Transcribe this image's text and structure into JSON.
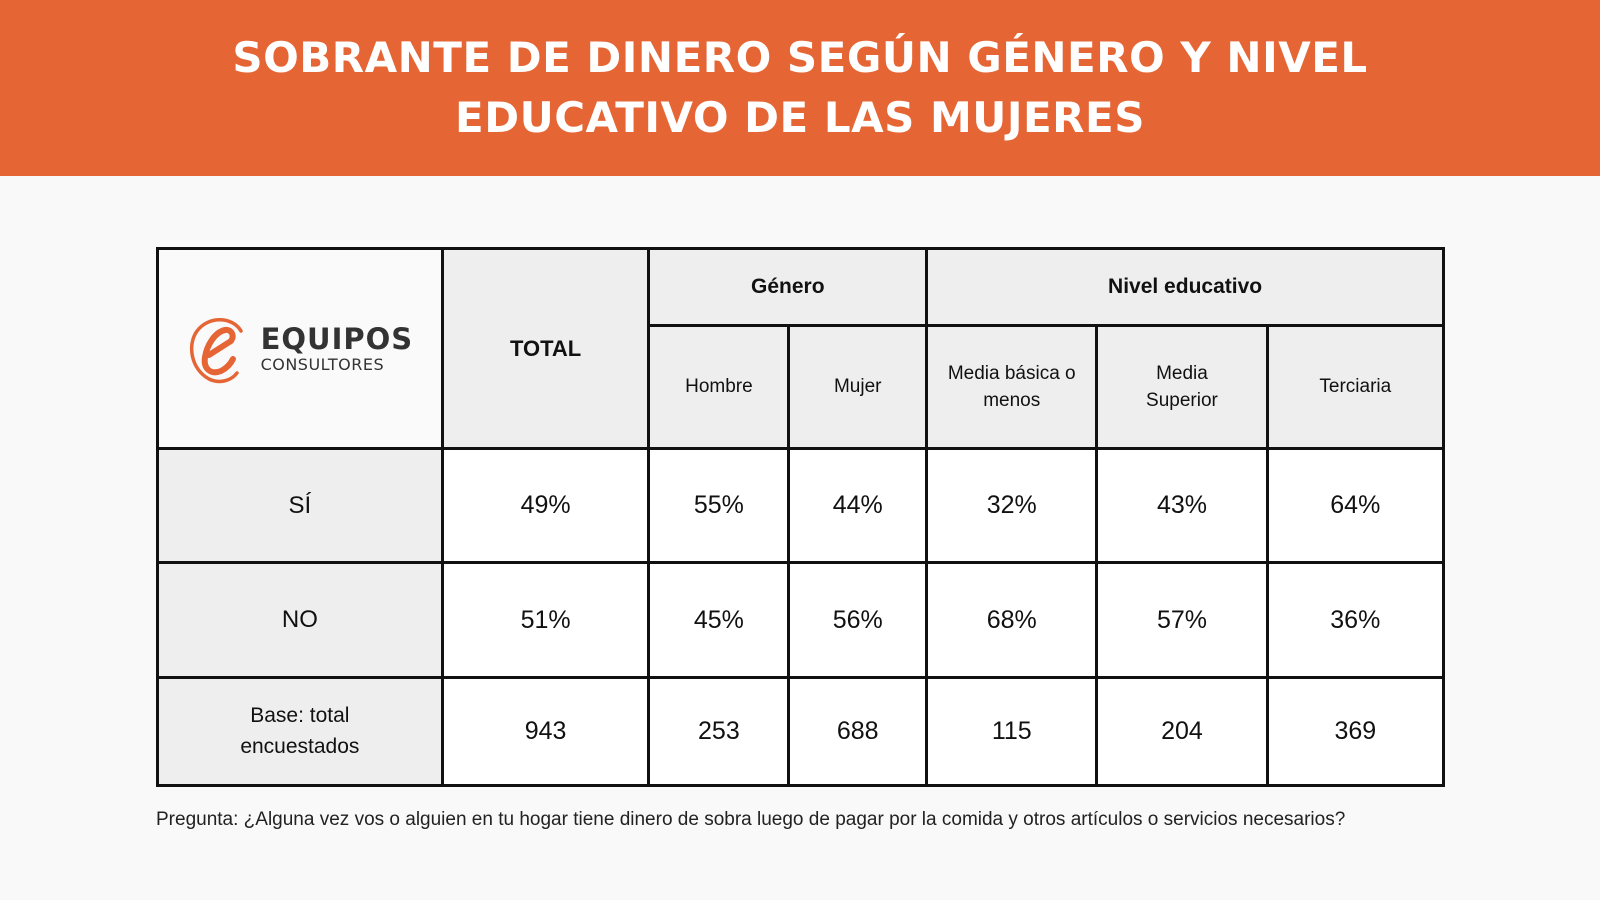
{
  "title": "SOBRANTE DE DINERO SEGÚN GÉNERO Y NIVEL EDUCATIVO DE LAS MUJERES",
  "colors": {
    "banner": "#e56535",
    "header_gray": "#eeeeee",
    "logo_accent": "#e56535"
  },
  "logo": {
    "icon": "e-logo-icon",
    "name": "EQUIPOS",
    "subtitle": "CONSULTORES"
  },
  "table": {
    "total_header": "TOTAL",
    "group_genero": "Género",
    "group_nivel": "Nivel educativo",
    "sub_headers": [
      "Hombre",
      "Mujer",
      "Media básica o menos",
      "Media Superior",
      "Terciaria"
    ],
    "rows": [
      {
        "label": "SÍ",
        "values": [
          "49%",
          "55%",
          "44%",
          "32%",
          "43%",
          "64%"
        ]
      },
      {
        "label": "NO",
        "values": [
          "51%",
          "45%",
          "56%",
          "68%",
          "57%",
          "36%"
        ]
      },
      {
        "label": "Base: total encuestados",
        "values": [
          "943",
          "253",
          "688",
          "115",
          "204",
          "369"
        ]
      }
    ]
  },
  "question": "Pregunta: ¿Alguna vez vos o alguien en tu hogar tiene dinero de sobra luego de pagar por la comida y otros artículos o servicios necesarios?"
}
